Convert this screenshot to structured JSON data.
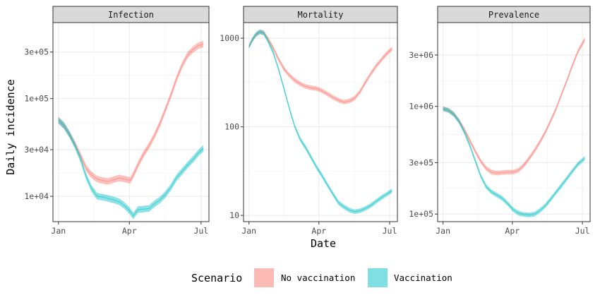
{
  "chart_data": {
    "type": "area",
    "ylabel": "Daily incidence",
    "xlabel": "Date",
    "x_scale": "date",
    "y_scale": "log10",
    "grid": true,
    "x_ticks": [
      {
        "date": "2021-01-01",
        "label": "Jan"
      },
      {
        "date": "2021-04-01",
        "label": "Apr"
      },
      {
        "date": "2021-07-01",
        "label": "Jul"
      }
    ],
    "legend": {
      "title": "Scenario",
      "placement": "bottom",
      "entries": [
        {
          "name": "No vaccination",
          "color": "#F8766D"
        },
        {
          "name": "Vaccination",
          "color": "#00BFC4"
        }
      ]
    },
    "panels": [
      {
        "title": "Infection",
        "ylim": [
          5500,
          600000
        ],
        "y_ticks": [
          {
            "value": 10000,
            "label": "1e+04"
          },
          {
            "value": 30000,
            "label": "3e+04"
          },
          {
            "value": 100000,
            "label": "1e+05"
          },
          {
            "value": 300000,
            "label": "3e+05"
          }
        ],
        "band_width": 0.08,
        "series": [
          {
            "name": "No vaccination",
            "points": [
              [
                "2021-01-01",
                60000
              ],
              [
                "2021-01-08",
                53000
              ],
              [
                "2021-01-15",
                43000
              ],
              [
                "2021-01-22",
                34000
              ],
              [
                "2021-01-29",
                26000
              ],
              [
                "2021-02-05",
                19500
              ],
              [
                "2021-02-12",
                16500
              ],
              [
                "2021-02-19",
                15000
              ],
              [
                "2021-02-26",
                14500
              ],
              [
                "2021-03-05",
                14200
              ],
              [
                "2021-03-12",
                14800
              ],
              [
                "2021-03-19",
                15400
              ],
              [
                "2021-03-26",
                15000
              ],
              [
                "2021-04-02",
                14500
              ],
              [
                "2021-04-06",
                16500
              ],
              [
                "2021-04-12",
                21000
              ],
              [
                "2021-04-19",
                27000
              ],
              [
                "2021-04-26",
                33000
              ],
              [
                "2021-05-03",
                42000
              ],
              [
                "2021-05-10",
                56000
              ],
              [
                "2021-05-17",
                78000
              ],
              [
                "2021-05-24",
                110000
              ],
              [
                "2021-05-31",
                160000
              ],
              [
                "2021-06-07",
                220000
              ],
              [
                "2021-06-14",
                280000
              ],
              [
                "2021-06-21",
                320000
              ],
              [
                "2021-06-28",
                350000
              ],
              [
                "2021-07-04",
                360000
              ]
            ]
          },
          {
            "name": "Vaccination",
            "points": [
              [
                "2021-01-01",
                60000
              ],
              [
                "2021-01-08",
                53000
              ],
              [
                "2021-01-15",
                43000
              ],
              [
                "2021-01-22",
                33000
              ],
              [
                "2021-01-29",
                24000
              ],
              [
                "2021-02-05",
                16000
              ],
              [
                "2021-02-12",
                12000
              ],
              [
                "2021-02-19",
                10000
              ],
              [
                "2021-02-26",
                9800
              ],
              [
                "2021-03-05",
                9500
              ],
              [
                "2021-03-12",
                9200
              ],
              [
                "2021-03-19",
                8800
              ],
              [
                "2021-03-26",
                8000
              ],
              [
                "2021-04-02",
                7000
              ],
              [
                "2021-04-06",
                6300
              ],
              [
                "2021-04-12",
                7300
              ],
              [
                "2021-04-19",
                7400
              ],
              [
                "2021-04-26",
                7500
              ],
              [
                "2021-05-03",
                8400
              ],
              [
                "2021-05-10",
                9200
              ],
              [
                "2021-05-17",
                10500
              ],
              [
                "2021-05-24",
                12500
              ],
              [
                "2021-05-31",
                15500
              ],
              [
                "2021-06-07",
                18000
              ],
              [
                "2021-06-14",
                21000
              ],
              [
                "2021-06-21",
                24000
              ],
              [
                "2021-06-28",
                28000
              ],
              [
                "2021-07-04",
                31000
              ]
            ]
          }
        ]
      },
      {
        "title": "Mortality",
        "ylim": [
          8.5,
          1500
        ],
        "y_ticks": [
          {
            "value": 10,
            "label": "10"
          },
          {
            "value": 100,
            "label": "100"
          },
          {
            "value": 1000,
            "label": "1000"
          }
        ],
        "band_width": 0.06,
        "series": [
          {
            "name": "No vaccination",
            "points": [
              [
                "2021-01-01",
                800
              ],
              [
                "2021-01-05",
                950
              ],
              [
                "2021-01-10",
                1100
              ],
              [
                "2021-01-15",
                1180
              ],
              [
                "2021-01-20",
                1150
              ],
              [
                "2021-01-25",
                1000
              ],
              [
                "2021-02-01",
                780
              ],
              [
                "2021-02-08",
                580
              ],
              [
                "2021-02-15",
                450
              ],
              [
                "2021-02-22",
                380
              ],
              [
                "2021-03-01",
                335
              ],
              [
                "2021-03-08",
                305
              ],
              [
                "2021-03-15",
                285
              ],
              [
                "2021-03-22",
                275
              ],
              [
                "2021-03-29",
                270
              ],
              [
                "2021-04-05",
                255
              ],
              [
                "2021-04-12",
                235
              ],
              [
                "2021-04-19",
                215
              ],
              [
                "2021-04-26",
                200
              ],
              [
                "2021-05-03",
                190
              ],
              [
                "2021-05-10",
                195
              ],
              [
                "2021-05-17",
                210
              ],
              [
                "2021-05-24",
                250
              ],
              [
                "2021-05-31",
                320
              ],
              [
                "2021-06-07",
                400
              ],
              [
                "2021-06-14",
                490
              ],
              [
                "2021-06-21",
                580
              ],
              [
                "2021-06-28",
                680
              ],
              [
                "2021-07-04",
                760
              ]
            ]
          },
          {
            "name": "Vaccination",
            "points": [
              [
                "2021-01-01",
                800
              ],
              [
                "2021-01-05",
                950
              ],
              [
                "2021-01-10",
                1100
              ],
              [
                "2021-01-15",
                1180
              ],
              [
                "2021-01-20",
                1140
              ],
              [
                "2021-01-25",
                950
              ],
              [
                "2021-02-01",
                700
              ],
              [
                "2021-02-08",
                450
              ],
              [
                "2021-02-15",
                270
              ],
              [
                "2021-02-22",
                160
              ],
              [
                "2021-03-01",
                100
              ],
              [
                "2021-03-08",
                72
              ],
              [
                "2021-03-15",
                58
              ],
              [
                "2021-03-22",
                45
              ],
              [
                "2021-03-29",
                35
              ],
              [
                "2021-04-05",
                28
              ],
              [
                "2021-04-12",
                22
              ],
              [
                "2021-04-19",
                17.5
              ],
              [
                "2021-04-26",
                14
              ],
              [
                "2021-05-03",
                12.5
              ],
              [
                "2021-05-10",
                11.5
              ],
              [
                "2021-05-17",
                11
              ],
              [
                "2021-05-24",
                11.3
              ],
              [
                "2021-05-31",
                12
              ],
              [
                "2021-06-07",
                13
              ],
              [
                "2021-06-14",
                14.5
              ],
              [
                "2021-06-21",
                16
              ],
              [
                "2021-06-28",
                17.5
              ],
              [
                "2021-07-04",
                19
              ]
            ]
          }
        ]
      },
      {
        "title": "Prevalence",
        "ylim": [
          85000,
          6000000
        ],
        "y_ticks": [
          {
            "value": 100000,
            "label": "1e+05"
          },
          {
            "value": 300000,
            "label": "3e+05"
          },
          {
            "value": 1000000,
            "label": "1e+06"
          },
          {
            "value": 3000000,
            "label": "3e+06"
          }
        ],
        "band_width": 0.05,
        "series": [
          {
            "name": "No vaccination",
            "points": [
              [
                "2021-01-01",
                950000
              ],
              [
                "2021-01-08",
                920000
              ],
              [
                "2021-01-15",
                850000
              ],
              [
                "2021-01-22",
                730000
              ],
              [
                "2021-01-29",
                600000
              ],
              [
                "2021-02-05",
                480000
              ],
              [
                "2021-02-12",
                380000
              ],
              [
                "2021-02-19",
                310000
              ],
              [
                "2021-02-26",
                265000
              ],
              [
                "2021-03-05",
                245000
              ],
              [
                "2021-03-12",
                240000
              ],
              [
                "2021-03-19",
                243000
              ],
              [
                "2021-03-26",
                245000
              ],
              [
                "2021-04-02",
                245000
              ],
              [
                "2021-04-09",
                255000
              ],
              [
                "2021-04-16",
                285000
              ],
              [
                "2021-04-23",
                330000
              ],
              [
                "2021-04-30",
                390000
              ],
              [
                "2021-05-07",
                470000
              ],
              [
                "2021-05-14",
                580000
              ],
              [
                "2021-05-21",
                740000
              ],
              [
                "2021-05-28",
                960000
              ],
              [
                "2021-06-04",
                1300000
              ],
              [
                "2021-06-11",
                1750000
              ],
              [
                "2021-06-18",
                2400000
              ],
              [
                "2021-06-25",
                3200000
              ],
              [
                "2021-07-04",
                4200000
              ]
            ]
          },
          {
            "name": "Vaccination",
            "points": [
              [
                "2021-01-01",
                950000
              ],
              [
                "2021-01-08",
                920000
              ],
              [
                "2021-01-15",
                840000
              ],
              [
                "2021-01-22",
                720000
              ],
              [
                "2021-01-29",
                570000
              ],
              [
                "2021-02-05",
                430000
              ],
              [
                "2021-02-12",
                310000
              ],
              [
                "2021-02-19",
                225000
              ],
              [
                "2021-02-26",
                180000
              ],
              [
                "2021-03-05",
                160000
              ],
              [
                "2021-03-12",
                150000
              ],
              [
                "2021-03-19",
                140000
              ],
              [
                "2021-03-26",
                125000
              ],
              [
                "2021-04-02",
                110000
              ],
              [
                "2021-04-09",
                102000
              ],
              [
                "2021-04-16",
                99000
              ],
              [
                "2021-04-23",
                98000
              ],
              [
                "2021-04-30",
                100000
              ],
              [
                "2021-05-07",
                108000
              ],
              [
                "2021-05-14",
                120000
              ],
              [
                "2021-05-21",
                138000
              ],
              [
                "2021-05-28",
                160000
              ],
              [
                "2021-06-04",
                185000
              ],
              [
                "2021-06-11",
                215000
              ],
              [
                "2021-06-18",
                250000
              ],
              [
                "2021-06-25",
                290000
              ],
              [
                "2021-07-04",
                330000
              ]
            ]
          }
        ]
      }
    ]
  }
}
